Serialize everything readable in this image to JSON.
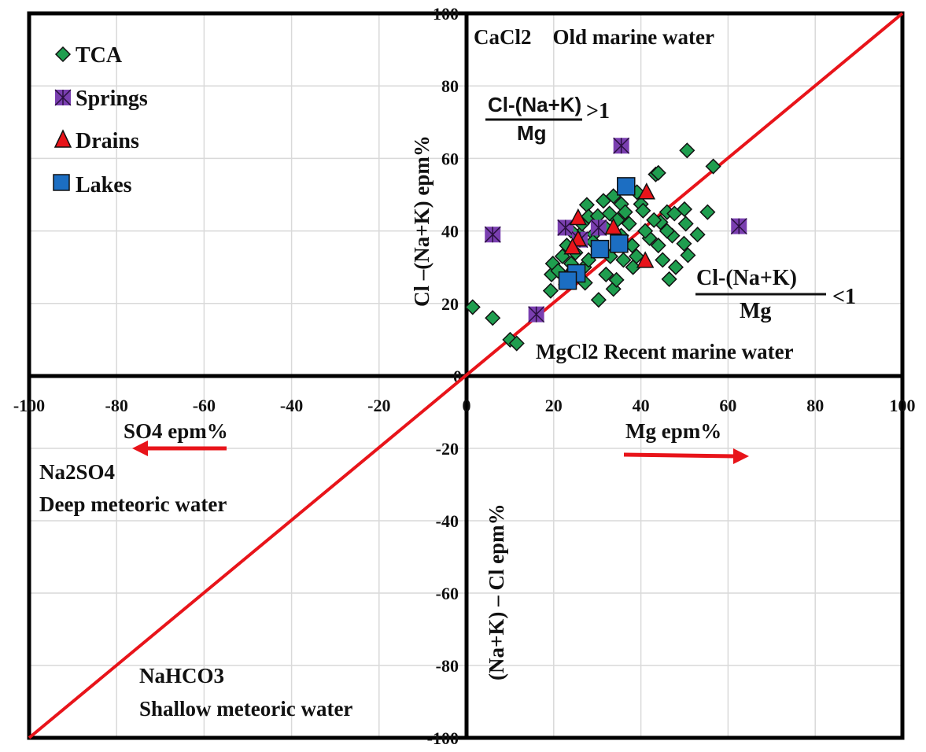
{
  "chart_data": {
    "type": "scatter",
    "title": "",
    "xlabel_positive": "Mg epm%",
    "xlabel_negative": "SO4 epm%",
    "ylabel_positive": "Cl –(Na+K) epm%",
    "ylabel_negative": "(Na+K) – Cl epm%",
    "xlim": [
      -100,
      100
    ],
    "ylim": [
      -100,
      100
    ],
    "x_ticks": [
      -100,
      -80,
      -60,
      -40,
      -20,
      0,
      20,
      40,
      60,
      80,
      100
    ],
    "y_ticks": [
      -100,
      -80,
      -60,
      -40,
      -20,
      0,
      20,
      40,
      60,
      80,
      100
    ],
    "grid": true,
    "legend_position": "top-left",
    "reference_line": {
      "label": "1:1 line",
      "from": [
        -100,
        -100
      ],
      "to": [
        100,
        100
      ],
      "color": "#e8141a"
    },
    "quadrant_labels": {
      "top_right_title": "CaCl2    Old marine water",
      "bottom_right_title": "MgCl2 Recent marine water",
      "left_upper_line1": "Na2SO4",
      "left_upper_line2": "Deep meteoric water",
      "left_lower_line1": "NaHCO3",
      "left_lower_line2": "Shallow meteoric water"
    },
    "ratio_annotations": {
      "above": {
        "numerator": "Cl-(Na+K)",
        "denominator": "Mg",
        "relation": ">1"
      },
      "below": {
        "numerator": "Cl-(Na+K)",
        "denominator": "Mg",
        "relation": "<1"
      }
    },
    "series": [
      {
        "name": "TCA",
        "marker": "diamond",
        "color": "#1f9e4f",
        "points": [
          [
            1.4,
            19
          ],
          [
            6,
            16
          ],
          [
            10,
            10
          ],
          [
            11.5,
            9
          ],
          [
            19.3,
            23.5
          ],
          [
            19.5,
            28
          ],
          [
            19.8,
            31
          ],
          [
            21,
            29
          ],
          [
            22,
            33
          ],
          [
            23,
            36
          ],
          [
            24,
            31
          ],
          [
            25,
            34
          ],
          [
            26,
            39
          ],
          [
            27.2,
            25.7
          ],
          [
            27.6,
            47.2
          ],
          [
            26.5,
            42
          ],
          [
            28,
            44
          ],
          [
            29.2,
            39.1
          ],
          [
            30.1,
            44.1
          ],
          [
            30.3,
            21
          ],
          [
            31.4,
            48.3
          ],
          [
            31.9,
            40.9
          ],
          [
            32.8,
            44.8
          ],
          [
            33.7,
            49.6
          ],
          [
            33.7,
            24
          ],
          [
            34.4,
            26.5
          ],
          [
            34.6,
            43
          ],
          [
            35.5,
            47.4
          ],
          [
            35.5,
            38.7
          ],
          [
            36.4,
            45.2
          ],
          [
            37.3,
            42
          ],
          [
            38.2,
            30
          ],
          [
            39.1,
            50.7
          ],
          [
            40,
            47.4
          ],
          [
            40.5,
            45.6
          ],
          [
            38,
            36
          ],
          [
            39,
            33
          ],
          [
            43.4,
            55.6
          ],
          [
            44,
            56
          ],
          [
            44.5,
            42.4
          ],
          [
            46,
            45.2
          ],
          [
            47.7,
            44.8
          ],
          [
            50,
            46
          ],
          [
            50.3,
            42
          ],
          [
            50.6,
            62.2
          ],
          [
            53,
            39
          ],
          [
            55.3,
            45.2
          ],
          [
            56.6,
            57.8
          ],
          [
            46.5,
            26.7
          ],
          [
            48,
            30
          ],
          [
            50.8,
            33.3
          ],
          [
            49.9,
            36.5
          ],
          [
            47.2,
            38.7
          ],
          [
            44,
            36
          ],
          [
            45,
            32
          ],
          [
            42,
            38
          ],
          [
            41,
            40
          ],
          [
            43,
            43
          ],
          [
            46,
            40
          ],
          [
            29,
            37
          ],
          [
            27,
            30
          ],
          [
            33,
            33
          ],
          [
            36,
            32
          ],
          [
            31,
            35
          ],
          [
            24,
            40
          ],
          [
            28,
            32
          ],
          [
            32,
            28
          ]
        ]
      },
      {
        "name": "Springs",
        "marker": "square-x",
        "color": "#7a3fb0",
        "points": [
          [
            6,
            39
          ],
          [
            16,
            17
          ],
          [
            22.7,
            40.9
          ],
          [
            26,
            37.6
          ],
          [
            30.3,
            40.9
          ],
          [
            35.5,
            63.5
          ],
          [
            62.5,
            41.3
          ]
        ]
      },
      {
        "name": "Drains",
        "marker": "triangle",
        "color": "#e8141a",
        "points": [
          [
            25.6,
            43.5
          ],
          [
            25.6,
            37.6
          ],
          [
            24.3,
            35.4
          ],
          [
            33.7,
            40.9
          ],
          [
            41,
            31.7
          ],
          [
            41.3,
            50.6
          ],
          [
            23,
            27
          ]
        ]
      },
      {
        "name": "Lakes",
        "marker": "square",
        "color": "#1c6ec2",
        "points": [
          [
            36.6,
            52.3
          ],
          [
            30.6,
            35
          ],
          [
            35,
            36.5
          ],
          [
            25.2,
            28.3
          ],
          [
            23.2,
            26.3
          ]
        ]
      }
    ]
  }
}
